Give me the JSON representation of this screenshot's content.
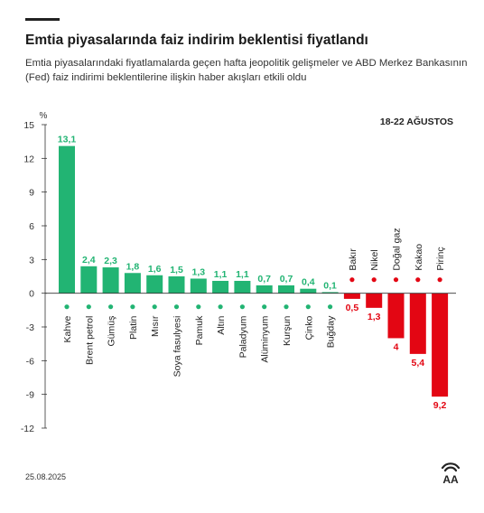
{
  "title": "Emtia piyasalarında faiz indirim beklentisi fiyatlandı",
  "subtitle": "Emtia piyasalarındaki fiyatlamalarda geçen hafta jeopolitik gelişmeler ve ABD Merkez Bankasının (Fed) faiz indirimi beklentilerine ilişkin haber akışları etkili oldu",
  "date": "25.08.2025",
  "logo_text": "AA",
  "colors": {
    "positive": "#22b473",
    "negative": "#e30613",
    "axis": "#333333",
    "grid": "#cccccc"
  },
  "chart_data": {
    "type": "bar",
    "period": "18-22 AĞUSTOS",
    "ylabel": "%",
    "ylim": [
      -12,
      15
    ],
    "yticks": [
      15,
      12,
      9,
      6,
      3,
      0,
      -3,
      -6,
      -9,
      -12
    ],
    "ytick_labels": [
      "15",
      "12",
      "9",
      "6",
      "3",
      "0",
      "-3",
      "-6",
      "-9",
      "-12"
    ],
    "categories": [
      "Kahve",
      "Brent petrol",
      "Gümüş",
      "Platin",
      "Mısır",
      "Soya fasulyesi",
      "Pamuk",
      "Altın",
      "Paladyum",
      "Alüminyum",
      "Kurşun",
      "Çinko",
      "Buğday",
      "Bakır",
      "Nikel",
      "Doğal gaz",
      "Kakao",
      "Pirinç"
    ],
    "values": [
      13.1,
      2.4,
      2.3,
      1.8,
      1.6,
      1.5,
      1.3,
      1.1,
      1.1,
      0.7,
      0.7,
      0.4,
      0.1,
      -0.5,
      -1.3,
      -4,
      -5.4,
      -9.2
    ],
    "value_labels": [
      "13,1",
      "2,4",
      "2,3",
      "1,8",
      "1,6",
      "1,5",
      "1,3",
      "1,1",
      "1,1",
      "0,7",
      "0,7",
      "0,4",
      "0,1",
      "0,5",
      "1,3",
      "4",
      "5,4",
      "9,2"
    ],
    "icons": [
      "coffee-bean-icon",
      "oil-barrel-icon",
      "metal-icon",
      "metal-icon",
      "leaf-icon",
      "leaf-icon",
      "leaf-icon",
      "metal-icon",
      "metal-icon",
      "metal-icon",
      "metal-icon",
      "metal-icon",
      "leaf-icon",
      "metal-icon",
      "metal-icon",
      "flame-icon",
      "cocoa-icon",
      "rice-bag-icon"
    ]
  }
}
